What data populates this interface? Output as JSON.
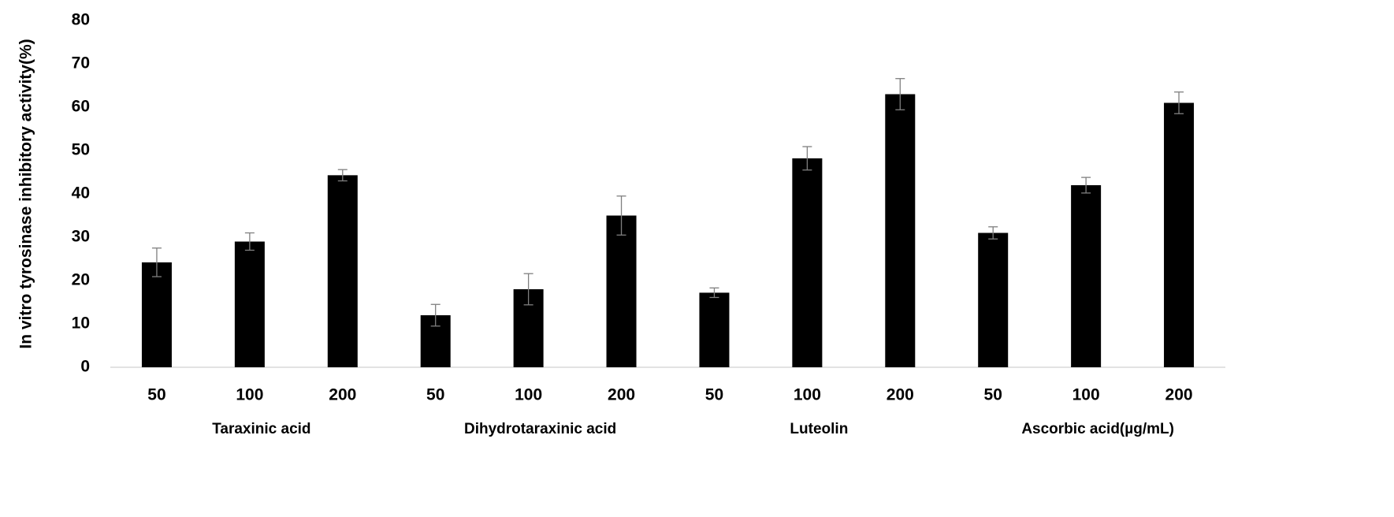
{
  "chart_data": {
    "type": "bar",
    "y_label": "In vitro tyrosinase  inhibitory  activity(%)",
    "categories": [
      "50",
      "100",
      "200",
      "50",
      "100",
      "200",
      "50",
      "100",
      "200",
      "50",
      "100",
      "200"
    ],
    "groups": [
      {
        "name": "Taraxinic acid",
        "size": 3
      },
      {
        "name": "Dihydrotaraxinic acid",
        "size": 3
      },
      {
        "name": "Luteolin",
        "size": 3
      },
      {
        "name": "Ascorbic acid(µg/mL)",
        "size": 3
      }
    ],
    "values": [
      24.2,
      29,
      44.3,
      12,
      18,
      35,
      17.2,
      48.2,
      63,
      31,
      42,
      61
    ],
    "errors": [
      3.3,
      2,
      1.3,
      2.5,
      3.6,
      4.5,
      1.1,
      2.7,
      3.6,
      1.4,
      1.8,
      2.5
    ],
    "color": "#000000",
    "error_color": "#7f7f7f",
    "ylim": [
      0,
      80
    ],
    "yticks": [
      0,
      10,
      20,
      30,
      40,
      50,
      60,
      70,
      80
    ],
    "grid": false
  }
}
